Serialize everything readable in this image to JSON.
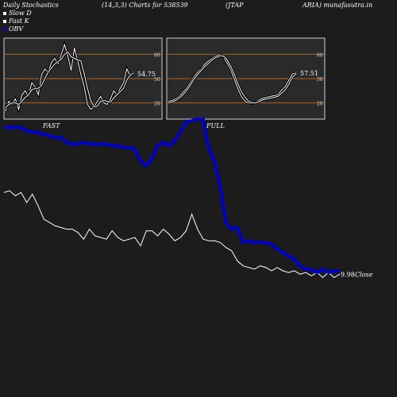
{
  "header": {
    "title": "Daily Stochastics",
    "params": "(14,3,3) Charts for 538539",
    "symbol": "(JTAP",
    "source": "ARIA) munafasutra.in"
  },
  "legend": [
    {
      "label": "Slow  D",
      "color": "#ffffff"
    },
    {
      "label": "Fast K",
      "color": "#ffffff"
    },
    {
      "label": "OBV",
      "color": "#0000cc"
    }
  ],
  "colors": {
    "background": "#1c1c1c",
    "panel": "#2a2a2a",
    "band": "#b5651d",
    "price": "#ffffff",
    "obv": "#0000cc"
  },
  "chart_data": [
    {
      "type": "line",
      "panel": "FAST",
      "panel_label": "FAST",
      "ylim": [
        0,
        100
      ],
      "bands": [
        20,
        50,
        80
      ],
      "band_labels": [
        "20",
        "50",
        "80"
      ],
      "last_value_label": "54.75",
      "series": [
        {
          "name": "Fast K",
          "values": [
            10,
            22,
            18,
            25,
            12,
            30,
            35,
            28,
            45,
            40,
            30,
            55,
            62,
            58,
            70,
            75,
            68,
            80,
            92,
            78,
            60,
            88,
            72,
            55,
            40,
            18,
            12,
            15,
            22,
            28,
            20,
            18,
            25,
            35,
            30,
            38,
            45,
            62,
            54,
            56
          ]
        },
        {
          "name": "Slow  D",
          "values": [
            14,
            18,
            20,
            20,
            18,
            22,
            27,
            30,
            36,
            38,
            38,
            42,
            50,
            58,
            63,
            68,
            71,
            74,
            80,
            83,
            77,
            75,
            73,
            72,
            56,
            38,
            23,
            15,
            16,
            22,
            23,
            22,
            21,
            26,
            30,
            34,
            38,
            48,
            54,
            57
          ]
        }
      ]
    },
    {
      "type": "line",
      "panel": "FULL",
      "panel_label": "FULL",
      "ylim": [
        0,
        100
      ],
      "bands": [
        20,
        50,
        80
      ],
      "band_labels": [
        "20",
        "50",
        "80"
      ],
      "last_value_label": "57.51",
      "series": [
        {
          "name": "Fast K",
          "values": [
            22,
            23,
            25,
            28,
            33,
            38,
            45,
            52,
            58,
            62,
            68,
            72,
            75,
            78,
            80,
            77,
            70,
            62,
            50,
            38,
            28,
            22,
            20,
            19,
            21,
            24,
            26,
            27,
            28,
            29,
            30,
            36,
            40,
            48,
            56,
            57
          ]
        },
        {
          "name": "Slow  D",
          "values": [
            20,
            21,
            23,
            26,
            30,
            35,
            42,
            49,
            55,
            60,
            65,
            69,
            73,
            76,
            78,
            78,
            74,
            66,
            56,
            44,
            34,
            27,
            22,
            20,
            20,
            22,
            24,
            25,
            26,
            27,
            28,
            32,
            36,
            43,
            52,
            56
          ]
        }
      ]
    },
    {
      "type": "line",
      "panel": "price",
      "last_value_label": "9.98",
      "series": [
        {
          "name": "Close",
          "values": [
            56,
            57,
            54,
            56,
            50,
            55,
            48,
            40,
            38,
            36,
            35,
            34,
            34,
            32,
            28,
            34,
            30,
            29,
            28,
            33,
            29,
            27,
            28,
            29,
            24,
            33,
            33,
            30,
            34,
            31,
            27,
            29,
            33,
            43,
            34,
            28,
            27,
            27,
            26,
            23,
            21,
            15,
            12,
            11,
            10,
            12,
            11,
            9,
            11,
            9,
            8,
            9,
            7,
            8,
            6,
            8,
            5,
            8,
            5,
            7
          ]
        },
        {
          "name": "OBV",
          "values": [
            95,
            95,
            95,
            95,
            93,
            92,
            92,
            91,
            90,
            89,
            89,
            86,
            85,
            85,
            86,
            85,
            85,
            85,
            85,
            84,
            84,
            83,
            83,
            82,
            75,
            72,
            76,
            84,
            86,
            84,
            87,
            92,
            98,
            99,
            100,
            100,
            82,
            75,
            60,
            38,
            34,
            35,
            26,
            27,
            26,
            26,
            26,
            25,
            22,
            20,
            18,
            16,
            12,
            10,
            10,
            8,
            10,
            8,
            9,
            9
          ]
        }
      ]
    }
  ]
}
